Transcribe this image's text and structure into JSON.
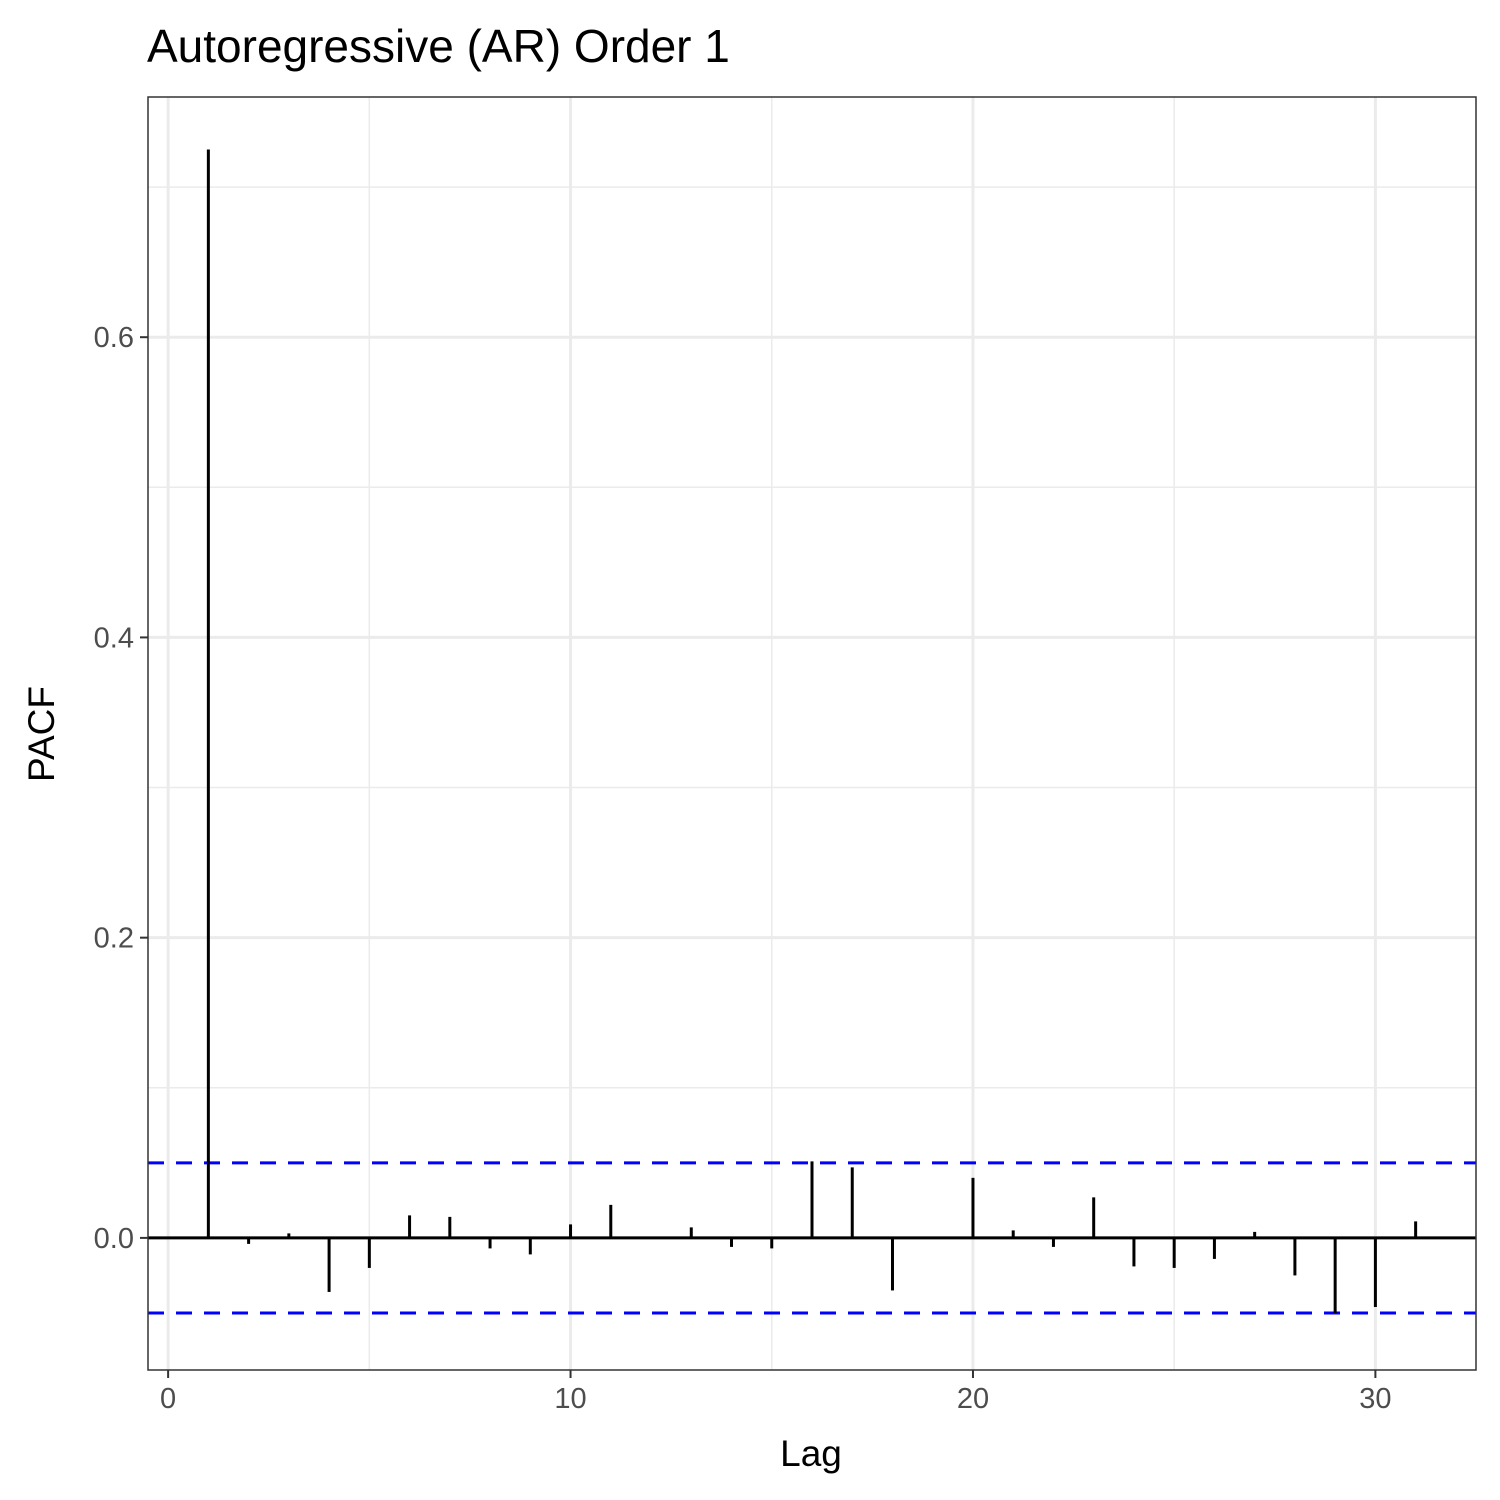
{
  "chart_data": {
    "type": "bar",
    "title": "Autoregressive (AR) Order 1",
    "xlabel": "Lag",
    "ylabel": "PACF",
    "xlim": [
      -0.5,
      32.5
    ],
    "ylim": [
      -0.088,
      0.76
    ],
    "x_ticks": [
      0,
      10,
      20,
      30
    ],
    "x_tick_labels": [
      "0",
      "10",
      "20",
      "30"
    ],
    "y_ticks": [
      0.0,
      0.2,
      0.4,
      0.6
    ],
    "y_tick_labels": [
      "0.0",
      "0.2",
      "0.4",
      "0.6"
    ],
    "x_minor_ticks": [
      5,
      15,
      25
    ],
    "y_minor_ticks": [
      0.1,
      0.3,
      0.5,
      0.7
    ],
    "grid": true,
    "confidence_bound": 0.05,
    "colors": {
      "bars": "#000000",
      "bounds": "#0000ff",
      "grid": "#ebebeb",
      "frame": "#333333"
    },
    "lags": [
      1,
      2,
      3,
      4,
      5,
      6,
      7,
      8,
      9,
      10,
      11,
      12,
      13,
      14,
      15,
      16,
      17,
      18,
      19,
      20,
      21,
      22,
      23,
      24,
      25,
      26,
      27,
      28,
      29,
      30,
      31
    ],
    "values": [
      0.725,
      -0.004,
      0.003,
      -0.036,
      -0.02,
      0.015,
      0.014,
      -0.007,
      -0.011,
      0.009,
      0.022,
      0.0,
      0.007,
      -0.006,
      -0.007,
      0.051,
      0.047,
      -0.035,
      0.0,
      0.04,
      0.005,
      -0.006,
      0.027,
      -0.019,
      -0.02,
      -0.014,
      0.004,
      -0.025,
      -0.05,
      -0.046,
      0.011
    ]
  }
}
